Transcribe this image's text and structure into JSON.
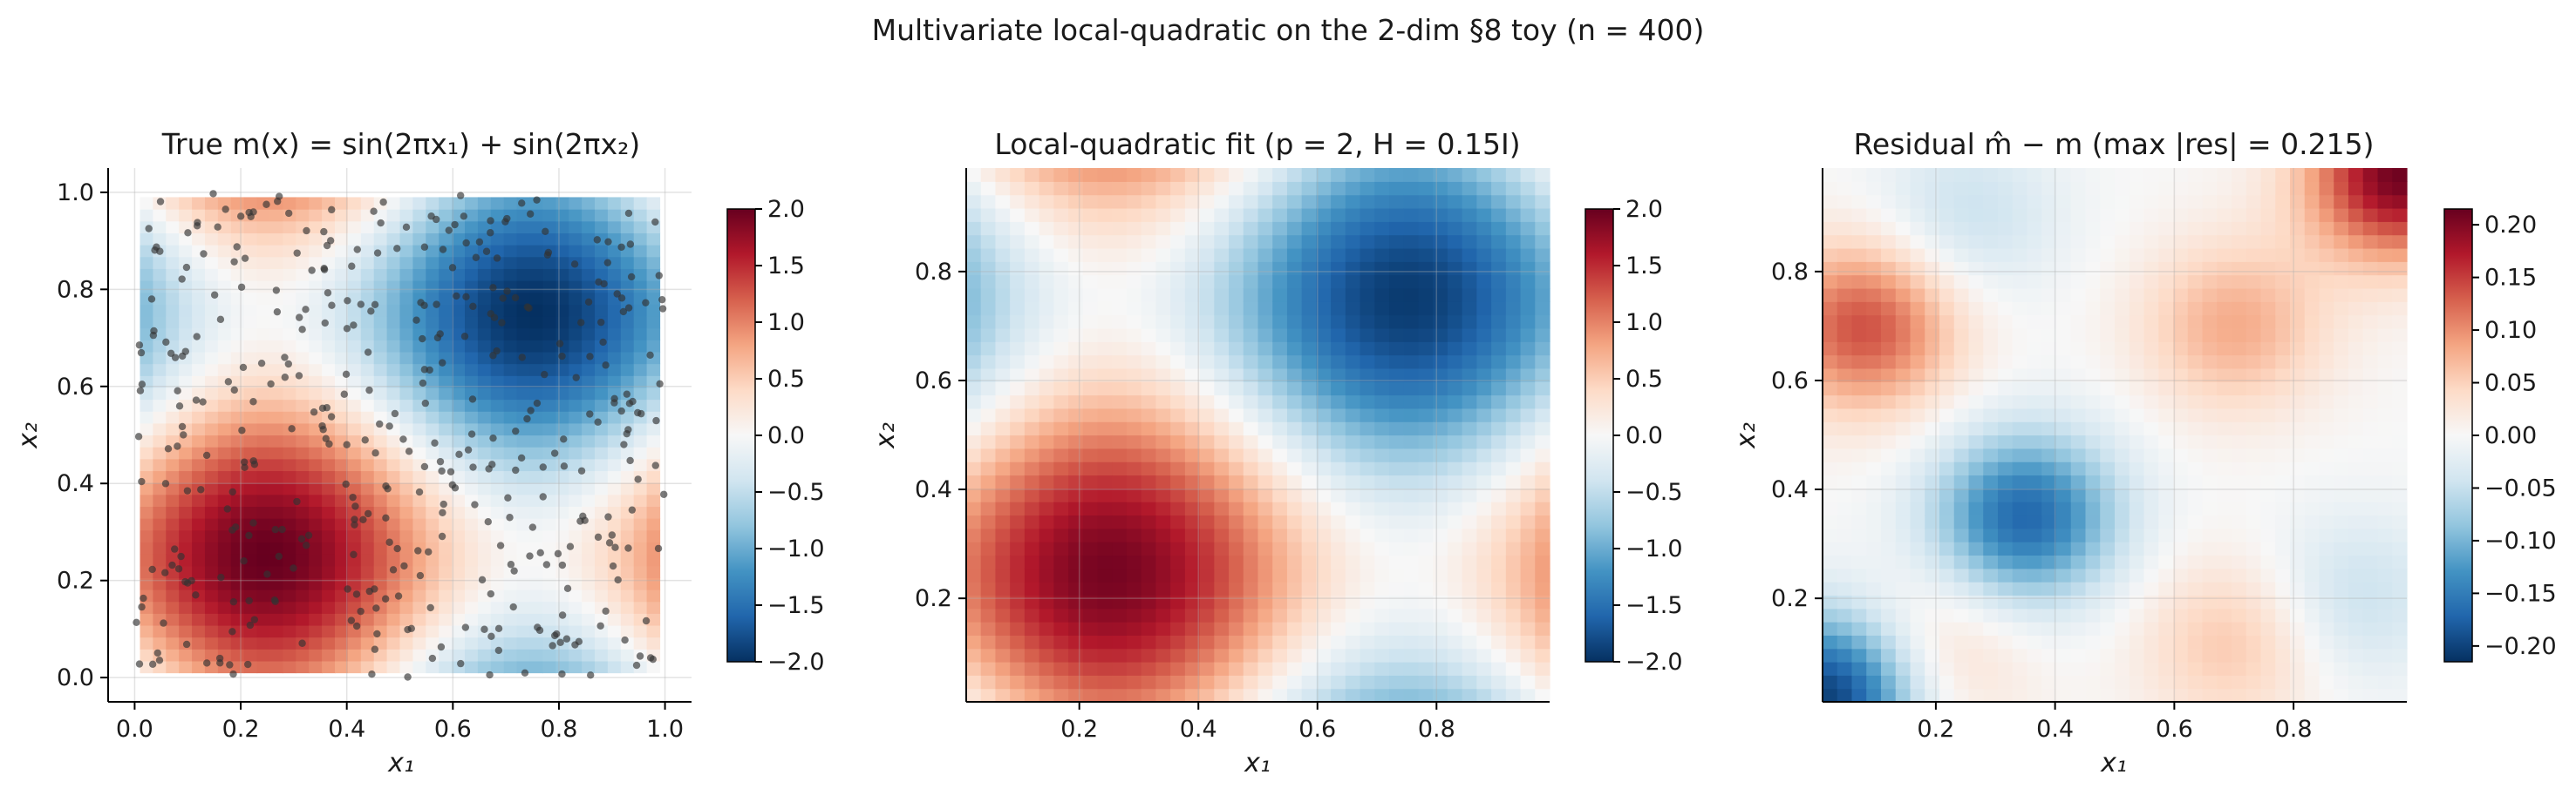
{
  "figure": {
    "suptitle": "Multivariate local-quadratic on the 2-dim §8 toy (n = 400)"
  },
  "chart_data": [
    {
      "type": "heatmap",
      "title": "True m(x) = sin(2πx₁) + sin(2πx₂)",
      "xlabel": "x₁",
      "ylabel": "x₂",
      "xlim": [
        -0.05,
        1.05
      ],
      "ylim": [
        -0.05,
        1.05
      ],
      "xticks": [
        0.0,
        0.2,
        0.4,
        0.6,
        0.8,
        1.0
      ],
      "xtick_labels": [
        "0.0",
        "0.2",
        "0.4",
        "0.6",
        "0.8",
        "1.0"
      ],
      "yticks": [
        0.0,
        0.2,
        0.4,
        0.6,
        0.8,
        1.0
      ],
      "ytick_labels": [
        "0.0",
        "0.2",
        "0.4",
        "0.6",
        "0.8",
        "1.0"
      ],
      "grid_extent": [
        0.01,
        0.99,
        0.01,
        0.99
      ],
      "grid_resolution": 40,
      "function": "sin(2*pi*x1) + sin(2*pi*x2)",
      "colormap": "RdBu_r",
      "clim": [
        -2.0,
        2.0
      ],
      "colorbar_ticks": [
        -2.0,
        -1.5,
        -1.0,
        -0.5,
        0.0,
        0.5,
        1.0,
        1.5,
        2.0
      ],
      "colorbar_tick_labels": [
        "−2.0",
        "−1.5",
        "−1.0",
        "−0.5",
        "0.0",
        "0.5",
        "1.0",
        "1.5",
        "2.0"
      ],
      "scatter": {
        "n": 400,
        "distribution": "uniform",
        "range": [
          0,
          1
        ],
        "color": "#333333",
        "alpha": 0.65
      },
      "grid": true
    },
    {
      "type": "heatmap",
      "title": "Local-quadratic fit (p = 2, H = 0.15I)",
      "xlabel": "x₁",
      "ylabel": "x₂",
      "xlim": [
        0.01,
        0.99
      ],
      "ylim": [
        0.01,
        0.99
      ],
      "xticks": [
        0.2,
        0.4,
        0.6,
        0.8
      ],
      "xtick_labels": [
        "0.2",
        "0.4",
        "0.6",
        "0.8"
      ],
      "yticks": [
        0.2,
        0.4,
        0.6,
        0.8
      ],
      "ytick_labels": [
        "0.2",
        "0.4",
        "0.6",
        "0.8"
      ],
      "grid_extent": [
        0.01,
        0.99,
        0.01,
        0.99
      ],
      "grid_resolution": 40,
      "function": "smoothed sin(2*pi*x1) + sin(2*pi*x2)",
      "colormap": "RdBu_r",
      "clim": [
        -2.0,
        2.0
      ],
      "colorbar_ticks": [
        -2.0,
        -1.5,
        -1.0,
        -0.5,
        0.0,
        0.5,
        1.0,
        1.5,
        2.0
      ],
      "colorbar_tick_labels": [
        "−2.0",
        "−1.5",
        "−1.0",
        "−0.5",
        "0.0",
        "0.5",
        "1.0",
        "1.5",
        "2.0"
      ],
      "grid": true
    },
    {
      "type": "heatmap",
      "title": "Residual m̂ − m  (max |res| = 0.215)",
      "xlabel": "x₁",
      "ylabel": "x₂",
      "xlim": [
        0.01,
        0.99
      ],
      "ylim": [
        0.01,
        0.99
      ],
      "xticks": [
        0.2,
        0.4,
        0.6,
        0.8
      ],
      "xtick_labels": [
        "0.2",
        "0.4",
        "0.6",
        "0.8"
      ],
      "yticks": [
        0.2,
        0.4,
        0.6,
        0.8
      ],
      "ytick_labels": [
        "0.2",
        "0.4",
        "0.6",
        "0.8"
      ],
      "grid_extent": [
        0.01,
        0.99,
        0.01,
        0.99
      ],
      "grid_resolution": 40,
      "function": "residual: fitted minus true",
      "colormap": "RdBu_r",
      "clim": [
        -0.215,
        0.215
      ],
      "max_abs_residual": 0.215,
      "colorbar_ticks": [
        -0.2,
        -0.15,
        -0.1,
        -0.05,
        0.0,
        0.05,
        0.1,
        0.15,
        0.2
      ],
      "colorbar_tick_labels": [
        "−0.20",
        "−0.15",
        "−0.10",
        "−0.05",
        "0.00",
        "0.05",
        "0.10",
        "0.15",
        "0.20"
      ],
      "features": [
        {
          "x1": 0.35,
          "x2": 0.35,
          "value": -0.17
        },
        {
          "x1": 0.08,
          "x2": 0.7,
          "value": 0.14
        },
        {
          "x1": 0.7,
          "x2": 0.7,
          "value": 0.08
        },
        {
          "x1": 0.9,
          "x2": 0.2,
          "value": -0.05
        },
        {
          "x1": 0.25,
          "x2": 0.9,
          "value": -0.05
        },
        {
          "x1": 0.7,
          "x2": 0.12,
          "value": 0.06
        },
        {
          "x1": 0.2,
          "x2": 0.1,
          "value": 0.05
        },
        {
          "x1": 0.98,
          "x2": 0.98,
          "value": 0.21
        },
        {
          "x1": 0.02,
          "x2": 0.02,
          "value": -0.21
        }
      ],
      "grid": true
    }
  ]
}
